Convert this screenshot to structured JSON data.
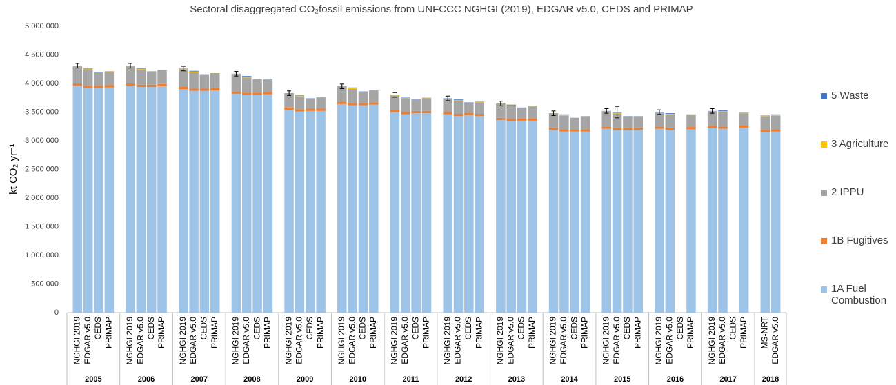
{
  "chart_data": {
    "type": "grouped-stacked-bar",
    "title": "Sectoral disaggregated CO₂fossil emissions from UNFCCC NGHGI (2019), EDGAR v5.0, CEDS and PRIMAP",
    "y_label": "kt CO₂ yr⁻¹",
    "groups": [
      {
        "name": "2005",
        "categories": [
          "NGHGI 2019",
          "EDGAR v5.0",
          "CEDS",
          "PRIMAP"
        ]
      },
      {
        "name": "2006",
        "categories": [
          "NGHGI 2019",
          "EDGAR v5.0",
          "CEDS",
          "PRIMAP"
        ]
      },
      {
        "name": "2007",
        "categories": [
          "NGHGI 2019",
          "EDGAR v5.0",
          "CEDS",
          "PRIMAP"
        ]
      },
      {
        "name": "2008",
        "categories": [
          "NGHGI 2019",
          "EDGAR v5.0",
          "CEDS",
          "PRIMAP"
        ]
      },
      {
        "name": "2009",
        "categories": [
          "NGHGI 2019",
          "EDGAR v5.0",
          "CEDS",
          "PRIMAP"
        ]
      },
      {
        "name": "2010",
        "categories": [
          "NGHGI 2019",
          "EDGAR v5.0",
          "CEDS",
          "PRIMAP"
        ]
      },
      {
        "name": "2011",
        "categories": [
          "NGHGI 2019",
          "EDGAR v5.0",
          "CEDS",
          "PRIMAP"
        ]
      },
      {
        "name": "2012",
        "categories": [
          "NGHGI 2019",
          "EDGAR v5.0",
          "CEDS",
          "PRIMAP"
        ]
      },
      {
        "name": "2013",
        "categories": [
          "NGHGI 2019",
          "EDGAR v5.0",
          "CEDS",
          "PRIMAP"
        ]
      },
      {
        "name": "2014",
        "categories": [
          "NGHGI 2019",
          "EDGAR v5.0",
          "CEDS",
          "PRIMAP"
        ]
      },
      {
        "name": "2015",
        "categories": [
          "NGHGI 2019",
          "EDGAR v5.0",
          "CEDS",
          "PRIMAP"
        ]
      },
      {
        "name": "2016",
        "categories": [
          "NGHGI 2019",
          "EDGAR v5.0",
          "CEDS",
          "PRIMAP"
        ]
      },
      {
        "name": "2017",
        "categories": [
          "NGHGI 2019",
          "EDGAR v5.0",
          "CEDS",
          "PRIMAP"
        ]
      },
      {
        "name": "2018",
        "categories": [
          "MS-NRT",
          "EDGAR v5.0"
        ]
      }
    ],
    "series": [
      {
        "name": "1A Fuel Combustion",
        "color": "#9dc3e6",
        "values": [
          3960000,
          3920000,
          3920000,
          3930000,
          3960000,
          3940000,
          3940000,
          3950000,
          3900000,
          3870000,
          3870000,
          3880000,
          3820000,
          3800000,
          3800000,
          3810000,
          3540000,
          3510000,
          3520000,
          3520000,
          3640000,
          3620000,
          3620000,
          3630000,
          3500000,
          3460000,
          3480000,
          3480000,
          3460000,
          3430000,
          3450000,
          3430000,
          3360000,
          3340000,
          3350000,
          3350000,
          3190000,
          3160000,
          3160000,
          3160000,
          3210000,
          3190000,
          3190000,
          3190000,
          3210000,
          3190000,
          null,
          3200000,
          3220000,
          3210000,
          null,
          3230000,
          3150000,
          3160000
        ]
      },
      {
        "name": "1B Fugitives",
        "color": "#ed7d31",
        "values": [
          40000,
          40000,
          40000,
          40000,
          40000,
          40000,
          40000,
          40000,
          40000,
          40000,
          40000,
          40000,
          40000,
          40000,
          40000,
          40000,
          40000,
          40000,
          40000,
          40000,
          40000,
          40000,
          40000,
          40000,
          40000,
          40000,
          40000,
          40000,
          40000,
          40000,
          40000,
          40000,
          40000,
          40000,
          40000,
          40000,
          40000,
          40000,
          40000,
          40000,
          40000,
          40000,
          40000,
          40000,
          40000,
          40000,
          null,
          40000,
          40000,
          40000,
          null,
          40000,
          40000,
          40000
        ]
      },
      {
        "name": "2 IPPU",
        "color": "#a5a5a5",
        "values": [
          300000,
          275000,
          235000,
          230000,
          300000,
          265000,
          225000,
          240000,
          310000,
          285000,
          245000,
          250000,
          300000,
          265000,
          225000,
          220000,
          240000,
          225000,
          175000,
          190000,
          260000,
          245000,
          195000,
          200000,
          250000,
          245000,
          195000,
          220000,
          230000,
          225000,
          175000,
          200000,
          240000,
          225000,
          185000,
          210000,
          240000,
          235000,
          195000,
          220000,
          260000,
          245000,
          195000,
          190000,
          240000,
          225000,
          null,
          210000,
          250000,
          255000,
          null,
          210000,
          240000,
          235000
        ]
      },
      {
        "name": "3 Agriculture",
        "color": "#ffc000",
        "values": [
          5000,
          15000,
          0,
          5000,
          5000,
          15000,
          0,
          5000,
          5000,
          15000,
          0,
          5000,
          5000,
          15000,
          0,
          5000,
          5000,
          15000,
          0,
          5000,
          5000,
          15000,
          0,
          5000,
          5000,
          15000,
          0,
          5000,
          5000,
          15000,
          0,
          5000,
          5000,
          15000,
          0,
          5000,
          5000,
          15000,
          0,
          5000,
          5000,
          15000,
          0,
          5000,
          5000,
          15000,
          null,
          5000,
          5000,
          15000,
          null,
          5000,
          5000,
          15000
        ]
      },
      {
        "name": "5 Waste",
        "color": "#4472c4",
        "values": [
          5000,
          10000,
          5000,
          5000,
          5000,
          10000,
          5000,
          5000,
          5000,
          10000,
          5000,
          5000,
          5000,
          10000,
          5000,
          5000,
          5000,
          10000,
          5000,
          5000,
          5000,
          10000,
          5000,
          5000,
          5000,
          10000,
          5000,
          5000,
          5000,
          10000,
          5000,
          5000,
          5000,
          10000,
          5000,
          5000,
          5000,
          10000,
          5000,
          5000,
          5000,
          10000,
          5000,
          5000,
          5000,
          10000,
          null,
          5000,
          5000,
          10000,
          null,
          5000,
          5000,
          10000
        ]
      }
    ],
    "errors": [
      40000,
      null,
      null,
      null,
      40000,
      null,
      null,
      null,
      40000,
      null,
      null,
      null,
      40000,
      null,
      null,
      null,
      40000,
      null,
      null,
      null,
      40000,
      null,
      null,
      null,
      40000,
      null,
      null,
      null,
      40000,
      null,
      null,
      null,
      40000,
      null,
      null,
      null,
      40000,
      null,
      null,
      null,
      40000,
      100000,
      null,
      null,
      40000,
      null,
      null,
      null,
      40000,
      null,
      null,
      null,
      null,
      null
    ],
    "ylim": [
      0,
      5000000
    ],
    "yticks": [
      0,
      {
        "value": 500000,
        "label": "500 000"
      },
      {
        "value": 1000000,
        "label": "1 000 000"
      },
      {
        "value": 1500000,
        "label": "1 500 000"
      },
      {
        "value": 2000000,
        "label": "2 000 000"
      },
      {
        "value": 2500000,
        "label": "2 500 000"
      },
      {
        "value": 3000000,
        "label": "3 000 000"
      },
      {
        "value": 3500000,
        "label": "3 500 000"
      },
      {
        "value": 4000000,
        "label": "4 000 000"
      },
      {
        "value": 4500000,
        "label": "4 500 000"
      },
      {
        "value": 5000000,
        "label": "5 000 000"
      }
    ],
    "grid": false,
    "legend": "right"
  }
}
